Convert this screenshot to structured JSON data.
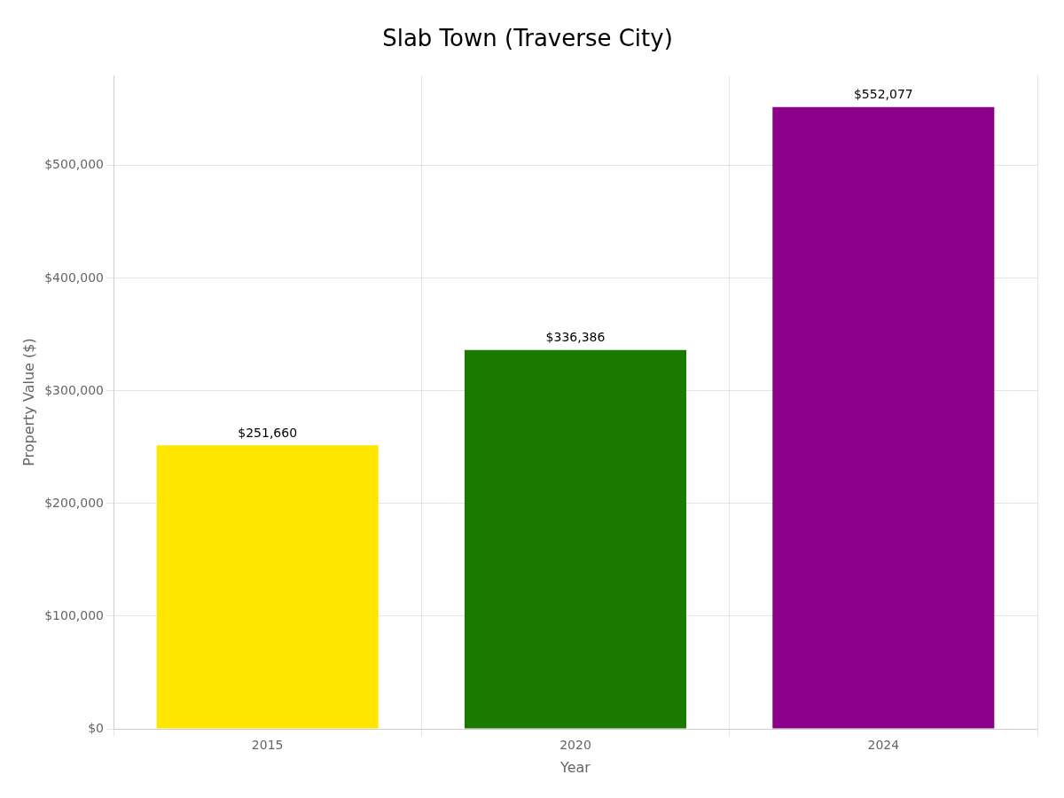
{
  "chart_data": {
    "type": "bar",
    "title": "Slab Town (Traverse City)",
    "xlabel": "Year",
    "ylabel": "Property Value ($)",
    "categories": [
      "2015",
      "2020",
      "2024"
    ],
    "values": [
      251660,
      336386,
      552077
    ],
    "value_labels": [
      "$251,660",
      "$336,386",
      "$552,077"
    ],
    "colors": [
      "#FFE600",
      "#1a7a00",
      "#8B008B"
    ],
    "ylim": [
      0,
      580000
    ],
    "yticks": [
      {
        "value": 0,
        "label": "$0"
      },
      {
        "value": 100000,
        "label": "$100,000"
      },
      {
        "value": 200000,
        "label": "$200,000"
      },
      {
        "value": 300000,
        "label": "$300,000"
      },
      {
        "value": 400000,
        "label": "$400,000"
      },
      {
        "value": 500000,
        "label": "$500,000"
      }
    ],
    "grid": true,
    "data_labels": true
  }
}
